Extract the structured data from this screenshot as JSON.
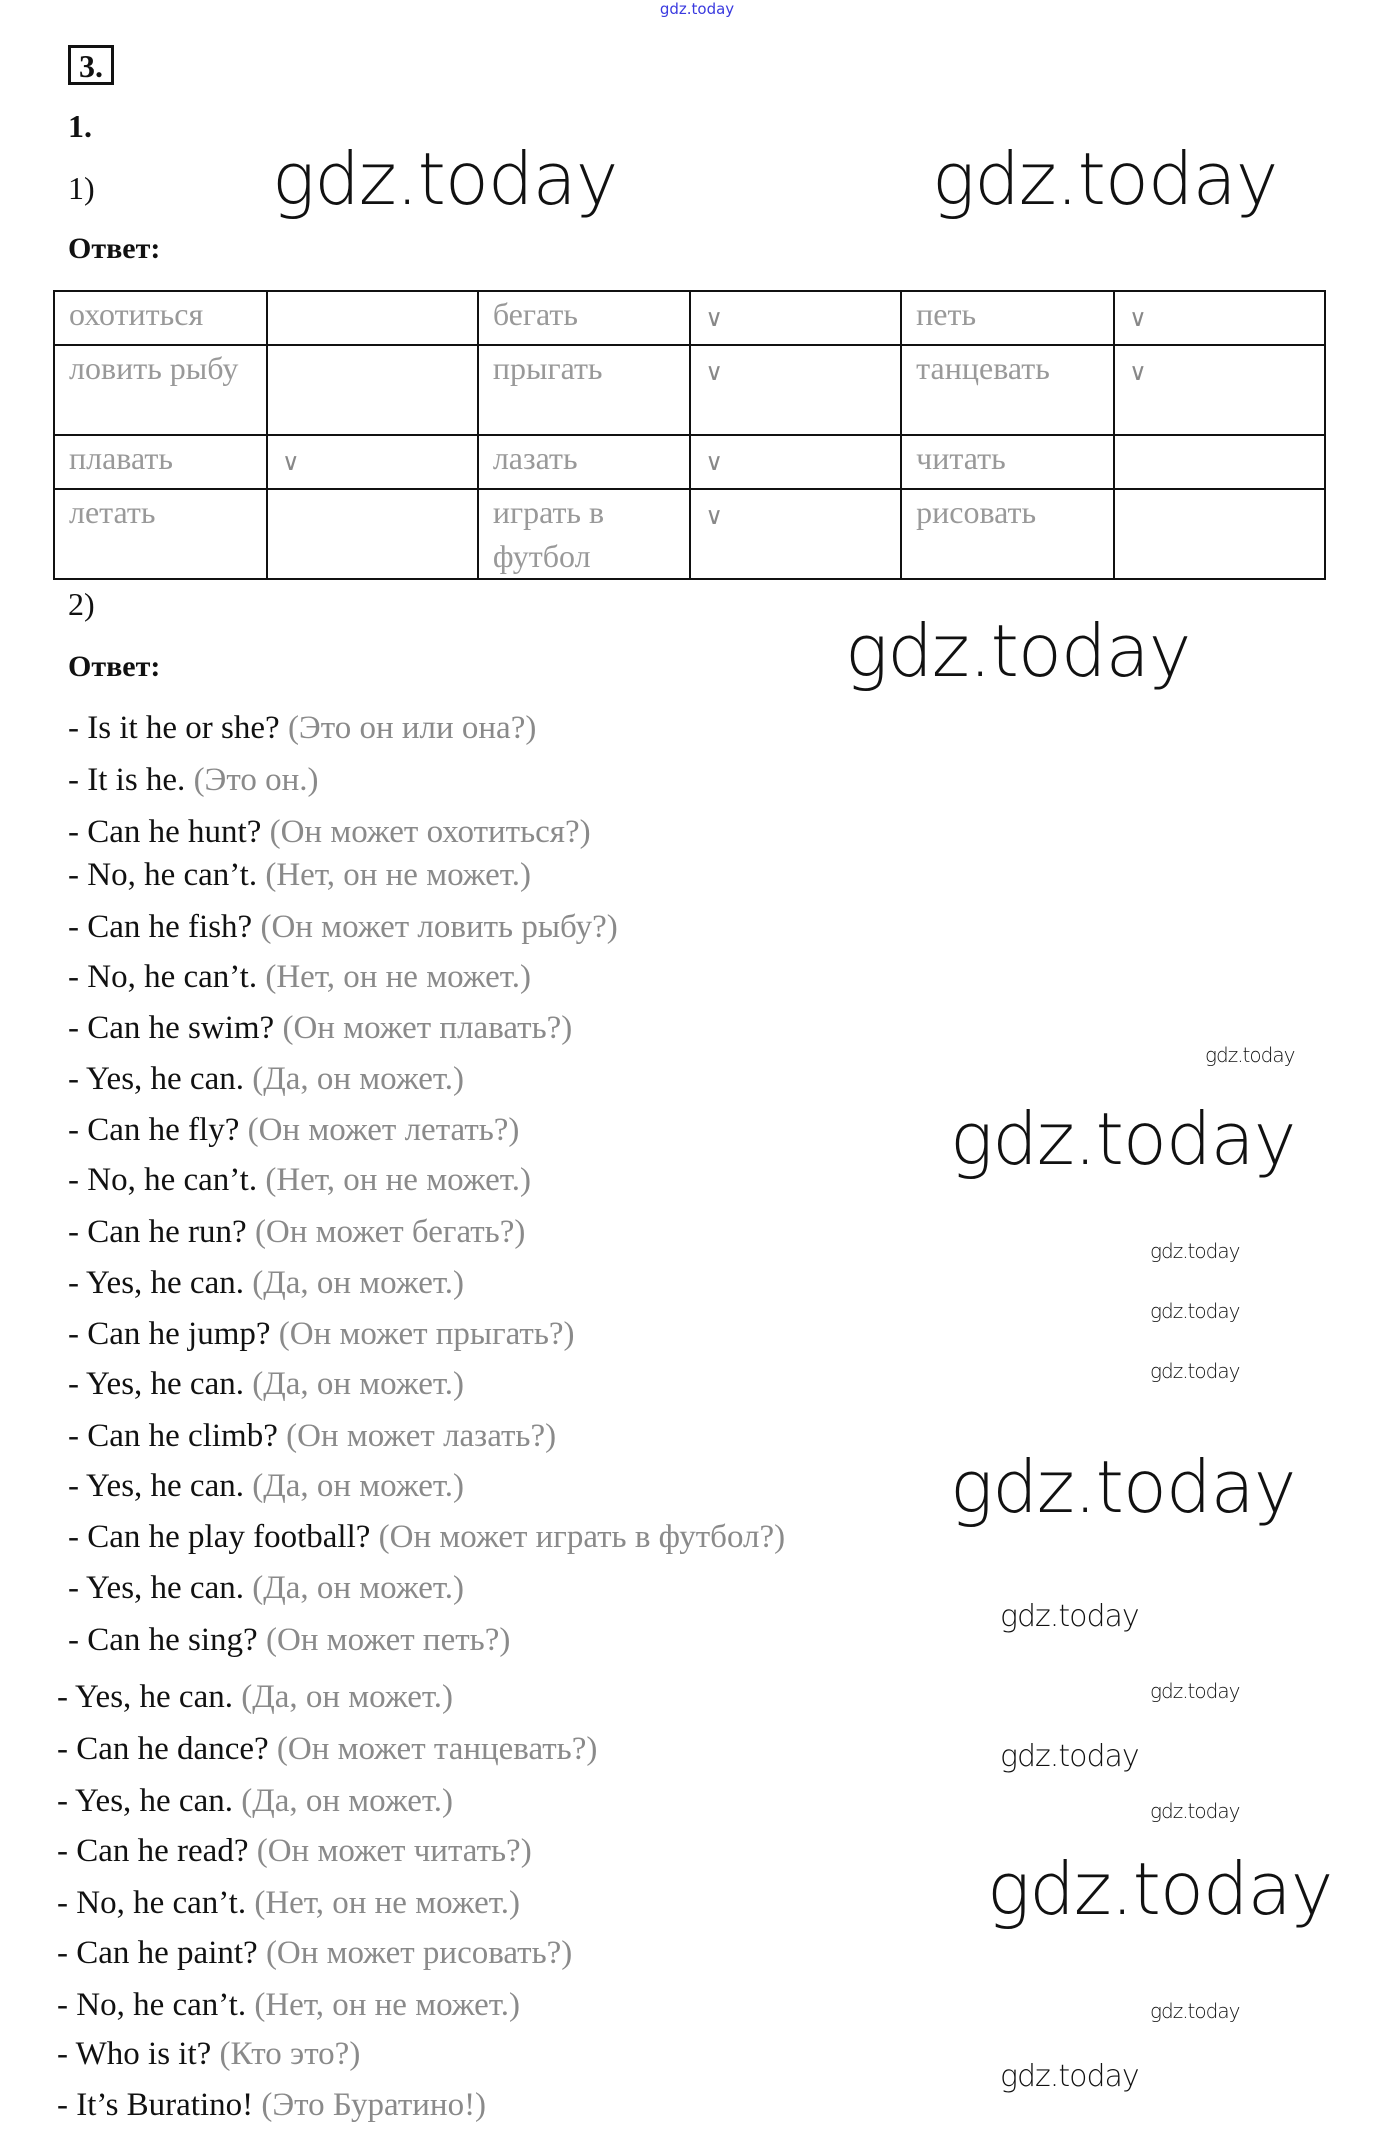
{
  "watermark": "gdz.today",
  "task_number": "3.",
  "exercise": "1.",
  "part1": {
    "label": "1)",
    "answer_label": "Ответ:",
    "table": [
      [
        "охотиться",
        "",
        "бегать",
        "∨",
        "петь",
        "∨"
      ],
      [
        "ловить рыбу",
        "",
        "прыгать",
        "∨",
        "танцевать",
        "∨"
      ],
      [
        "плавать",
        "∨",
        "лазать",
        "∨",
        "читать",
        ""
      ],
      [
        "летать",
        "",
        "играть в футбол",
        "∨",
        "рисовать",
        ""
      ]
    ]
  },
  "part2": {
    "label": "2)",
    "answer_label": "Ответ:",
    "lines": [
      {
        "en": "- Is it he or she?",
        "ru": "(Это он или она?)"
      },
      {
        "en": "- It is he.",
        "ru": "(Это он.)"
      },
      {
        "en": "- Can he hunt?",
        "ru": "(Он может охотиться?)"
      },
      {
        "en": "- No, he can’t.",
        "ru": "(Нет, он не может.)"
      },
      {
        "en": "- Can he fish?",
        "ru": "(Он может ловить рыбу?)"
      },
      {
        "en": "- No, he can’t.",
        "ru": "(Нет, он не может.)"
      },
      {
        "en": "- Can he swim?",
        "ru": "(Он может плавать?)"
      },
      {
        "en": "- Yes, he can.",
        "ru": "(Да, он может.)"
      },
      {
        "en": "- Can he fly?",
        "ru": "(Он может летать?)"
      },
      {
        "en": "- No, he can’t.",
        "ru": "(Нет, он не может.)"
      },
      {
        "en": "- Can he run?",
        "ru": "(Он может бегать?)"
      },
      {
        "en": "- Yes, he can.",
        "ru": "(Да, он может.)"
      },
      {
        "en": "- Can he jump?",
        "ru": "(Он может прыгать?)"
      },
      {
        "en": "- Yes, he can.",
        "ru": "(Да, он может.)"
      },
      {
        "en": "- Can he climb?",
        "ru": "(Он может лазать?)"
      },
      {
        "en": "- Yes, he can.",
        "ru": "(Да, он может.)"
      },
      {
        "en": "- Can he play football?",
        "ru": "(Он может играть в футбол?)"
      },
      {
        "en": "- Yes, he can.",
        "ru": "(Да, он может.)"
      },
      {
        "en": "- Can he sing?",
        "ru": "(Он может петь?)"
      },
      {
        "en": "- Yes, he can.",
        "ru": "(Да, он может.)"
      },
      {
        "en": "- Can he dance?",
        "ru": "(Он может танцевать?)"
      },
      {
        "en": "- Yes, he can.",
        "ru": "(Да, он может.)"
      },
      {
        "en": "- Can he read?",
        "ru": "(Он может читать?)"
      },
      {
        "en": "- No, he can’t.",
        "ru": "(Нет, он не может.)"
      },
      {
        "en": "- Can he paint?",
        "ru": "(Он может рисовать?)"
      },
      {
        "en": "- No, he can’t.",
        "ru": "(Нет, он не может.)"
      },
      {
        "en": "- Who is it?",
        "ru": "(Кто это?)"
      },
      {
        "en": "- It’s Buratino!",
        "ru": "(Это Буратино!)"
      }
    ]
  }
}
